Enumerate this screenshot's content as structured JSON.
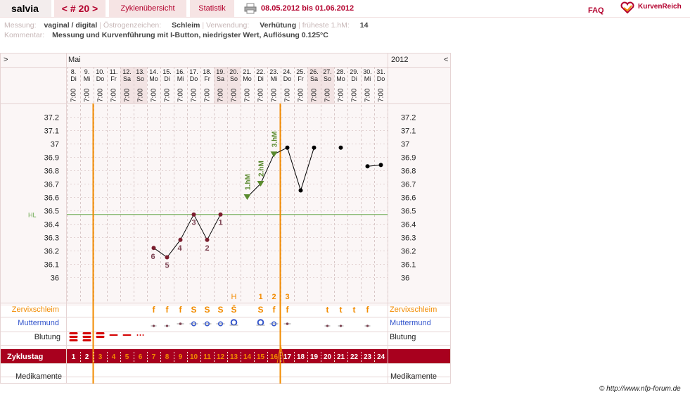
{
  "nav": {
    "user": "salvia",
    "cycle_nav": "< # 20 >",
    "tab_overview": "Zyklenübersicht",
    "tab_stats": "Statistik",
    "print_icon": "printer-icon",
    "date_range": "08.05.2012 bis 01.06.2012",
    "faq": "FAQ",
    "brand": "KurvenReich",
    "brand_icon": "heart-logo-icon"
  },
  "meta": {
    "measure_label": "Messung:",
    "measure_value": "vaginal / digital",
    "estrogen_label": "Östrogenzeichen:",
    "estrogen_value": "Schleim",
    "use_label": "Verwendung:",
    "use_value": "Verhütung",
    "earliest_label": "früheste 1.hM:",
    "earliest_value": "14",
    "comment_label": "Kommentar:",
    "comment_value": "Messung und Kurvenführung mit I-Button, niedrigster Wert, Auflösung 0.125°C"
  },
  "header": {
    "left_arrow": ">",
    "right_arrow": "<",
    "month": "Mai",
    "year": "2012"
  },
  "days": [
    {
      "date": "8.",
      "wd": "Di",
      "time": "7:00"
    },
    {
      "date": "9.",
      "wd": "Mi",
      "time": "7:00"
    },
    {
      "date": "10.",
      "wd": "Do",
      "time": "7:00"
    },
    {
      "date": "11.",
      "wd": "Fr",
      "time": "7:00"
    },
    {
      "date": "12.",
      "wd": "Sa",
      "time": "7:00"
    },
    {
      "date": "13.",
      "wd": "So",
      "time": "7:00"
    },
    {
      "date": "14.",
      "wd": "Mo",
      "time": "7:00"
    },
    {
      "date": "15.",
      "wd": "Di",
      "time": "7:00"
    },
    {
      "date": "16.",
      "wd": "Mi",
      "time": "7:00"
    },
    {
      "date": "17.",
      "wd": "Do",
      "time": "7:00"
    },
    {
      "date": "18.",
      "wd": "Fr",
      "time": "7:00"
    },
    {
      "date": "19.",
      "wd": "Sa",
      "time": "7:00"
    },
    {
      "date": "20.",
      "wd": "So",
      "time": "7:00"
    },
    {
      "date": "21.",
      "wd": "Mo",
      "time": "7:00"
    },
    {
      "date": "22.",
      "wd": "Di",
      "time": "7:00"
    },
    {
      "date": "23.",
      "wd": "Mi",
      "time": "7:00"
    },
    {
      "date": "24.",
      "wd": "Do",
      "time": "7:00"
    },
    {
      "date": "25.",
      "wd": "Fr",
      "time": "7:00"
    },
    {
      "date": "26.",
      "wd": "Sa",
      "time": "7:00"
    },
    {
      "date": "27.",
      "wd": "So",
      "time": "7:00"
    },
    {
      "date": "28.",
      "wd": "Mo",
      "time": "7:00"
    },
    {
      "date": "29.",
      "wd": "Di",
      "time": "7:00"
    },
    {
      "date": "30.",
      "wd": "Mi",
      "time": "7:00"
    },
    {
      "date": "31.",
      "wd": "Do",
      "time": "7:00"
    }
  ],
  "y_ticks": [
    "37.2",
    "37.1",
    "37",
    "36.9",
    "36.8",
    "36.7",
    "36.6",
    "36.5",
    "36.4",
    "36.3",
    "36.2",
    "36.1",
    "36"
  ],
  "hl_label": "HL",
  "chart_data": {
    "type": "line",
    "ylim": [
      36.0,
      37.2
    ],
    "coverline": 36.47,
    "temps": [
      null,
      null,
      null,
      null,
      null,
      null,
      36.22,
      36.15,
      36.28,
      36.47,
      36.28,
      36.47,
      null,
      36.6,
      36.7,
      36.92,
      36.97,
      36.65,
      36.97,
      null,
      36.97,
      null,
      36.83,
      36.84
    ],
    "low_labels": [
      null,
      null,
      null,
      null,
      null,
      null,
      "6",
      "5",
      "4",
      "3",
      "2",
      "1",
      null,
      null,
      null,
      null,
      null,
      null,
      null,
      null,
      null,
      null,
      null,
      null
    ],
    "high_labels": [
      null,
      null,
      null,
      null,
      null,
      null,
      null,
      null,
      null,
      null,
      null,
      null,
      null,
      "1.hM",
      "2.hM",
      "3.hM",
      null,
      null,
      null,
      null,
      null,
      null,
      null,
      null
    ],
    "dot_break_after": [
      19,
      21
    ]
  },
  "rows": {
    "mucus_label": "Zervixschleim",
    "cervix_label": "Muttermund",
    "bleed_label": "Blutung",
    "cycle_label": "Zyklustag",
    "meds_label": "Medikamente",
    "peak_marker": "H",
    "mucus_counts": [
      null,
      null,
      null,
      null,
      null,
      null,
      null,
      null,
      null,
      null,
      null,
      null,
      null,
      null,
      "1",
      "2",
      "3",
      null,
      null,
      null,
      null,
      null,
      null,
      null
    ],
    "mucus": [
      null,
      null,
      null,
      null,
      null,
      null,
      "f",
      "f",
      "f",
      "S",
      "S",
      "S",
      "Ŝ",
      null,
      "S",
      "f",
      "f",
      null,
      null,
      "t",
      "t",
      "t",
      "f",
      null
    ],
    "cycle_days": [
      "1",
      "2",
      "3",
      "4",
      "5",
      "6",
      "7",
      "8",
      "9",
      "10",
      "11",
      "12",
      "13",
      "14",
      "15",
      "16",
      "17",
      "18",
      "19",
      "20",
      "21",
      "22",
      "23",
      "24"
    ]
  },
  "footer": "© http://www.nfp-forum.de",
  "colors": {
    "accent": "#b3002d",
    "orange": "#f28b00",
    "green": "#5a8a2e",
    "plot": "#7b1e2e"
  }
}
